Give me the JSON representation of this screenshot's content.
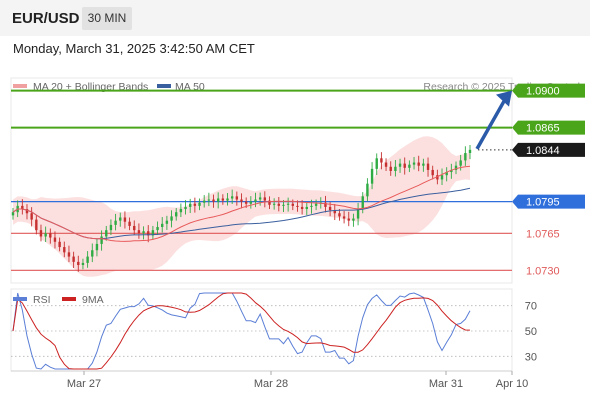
{
  "header": {
    "pair": "EUR/USD",
    "timeframe": "30 MIN",
    "datetime": "Monday, March 31, 2025 3:42:50 AM CET"
  },
  "legend": {
    "ma20": "MA 20 + Bollinger Bands",
    "ma50": "MA 50",
    "credit": "Research © 2025 Trading Central"
  },
  "rsi_legend": {
    "rsi": "RSI",
    "ma9": "9MA"
  },
  "colors": {
    "up": "#2eab43",
    "down": "#c62f2f",
    "support": "#e05a5a",
    "resistance": "#4aa51a",
    "pivot": "#2f6fdb",
    "current": "#1a1a1a",
    "ma20": "#e85a5a",
    "ma50": "#3a5f9e",
    "bollinger": "#fbd6d6",
    "arrow": "#2a5aa8",
    "rsi": "#5b7fd6",
    "rsi_ma": "#cc2222"
  },
  "chart_data": [
    {
      "type": "candlestick",
      "title": "EUR/USD 30 MIN",
      "x_ticks": [
        "Mar 27",
        "Mar 28",
        "Mar 31",
        "Apr 10"
      ],
      "ylim": [
        1.0718,
        1.0912
      ],
      "levels": [
        {
          "value": 1.09,
          "label": "1.0900",
          "kind": "resistance"
        },
        {
          "value": 1.0865,
          "label": "1.0865",
          "kind": "resistance"
        },
        {
          "value": 1.0844,
          "label": "1.0844",
          "kind": "current"
        },
        {
          "value": 1.0795,
          "label": "1.0795",
          "kind": "pivot"
        },
        {
          "value": 1.0765,
          "label": "1.0765",
          "kind": "support"
        },
        {
          "value": 1.073,
          "label": "1.0730",
          "kind": "support"
        }
      ],
      "closes": [
        1.0785,
        1.0791,
        1.0788,
        1.0784,
        1.0778,
        1.0768,
        1.0762,
        1.0765,
        1.0761,
        1.0757,
        1.0752,
        1.0747,
        1.0743,
        1.0738,
        1.0735,
        1.0737,
        1.0743,
        1.0749,
        1.0755,
        1.0762,
        1.0768,
        1.0773,
        1.0777,
        1.078,
        1.0776,
        1.0772,
        1.0768,
        1.0765,
        1.0767,
        1.0763,
        1.0768,
        1.0771,
        1.0774,
        1.0777,
        1.0781,
        1.0785,
        1.0788,
        1.079,
        1.0793,
        1.0791,
        1.0794,
        1.0796,
        1.0797,
        1.0795,
        1.0798,
        1.0796,
        1.0798,
        1.08,
        1.0797,
        1.0795,
        1.0793,
        1.0795,
        1.0797,
        1.0799,
        1.0796,
        1.0792,
        1.0793,
        1.0791,
        1.0792,
        1.0793,
        1.0791,
        1.079,
        1.0788,
        1.079,
        1.0791,
        1.0793,
        1.0794,
        1.079,
        1.0787,
        1.0784,
        1.0781,
        1.0779,
        1.0777,
        1.0779,
        1.0788,
        1.08,
        1.0812,
        1.0826,
        1.0836,
        1.0832,
        1.0828,
        1.0824,
        1.0828,
        1.0831,
        1.0827,
        1.083,
        1.0832,
        1.0829,
        1.0831,
        1.0825,
        1.082,
        1.0816,
        1.082,
        1.0823,
        1.0825,
        1.0829,
        1.0834,
        1.0841,
        1.0844
      ],
      "rsi": {
        "ylim": [
          20,
          80
        ],
        "ticks": [
          70,
          50,
          30
        ],
        "guides": [
          70,
          50,
          30
        ]
      }
    }
  ]
}
